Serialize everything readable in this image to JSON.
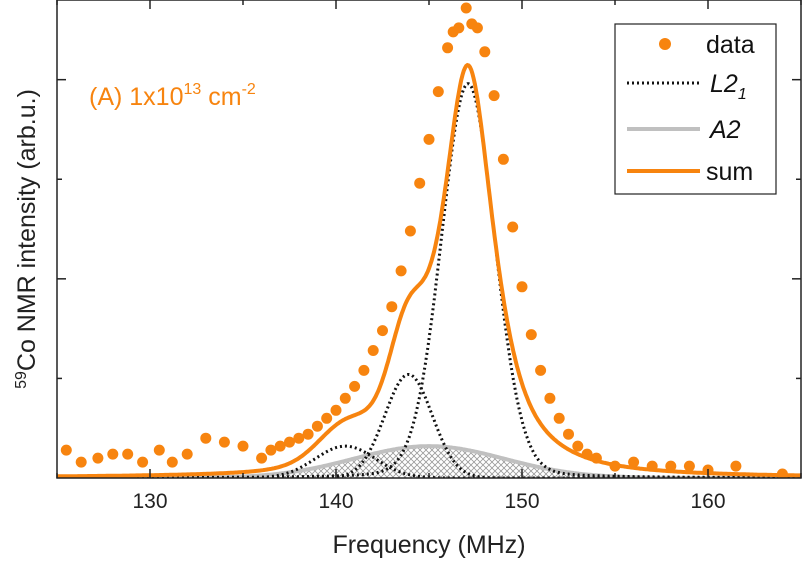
{
  "chart_data": {
    "type": "line",
    "xlabel": "Frequency (MHz)",
    "ylabel_sup": "59",
    "ylabel": "Co NMR intensity (arb.u.)",
    "xlim": [
      125,
      165
    ],
    "ylim": [
      0,
      1.2
    ],
    "xticks": [
      130,
      140,
      150,
      160
    ],
    "annotation": {
      "prefix": "(A) 1x10",
      "exp": "13",
      "unit": " cm",
      "unit_exp": "-2"
    },
    "colors": {
      "data": "#f7840f",
      "sum": "#f7840f",
      "l21": "#111111",
      "a2": "#c0c0c0"
    },
    "legend": {
      "position": "top-right",
      "data": "data",
      "l21_main": "L2",
      "l21_sub": "1",
      "a2": "A2",
      "sum": "sum"
    },
    "series": {
      "data": {
        "x": [
          125.5,
          126.3,
          127.2,
          128.0,
          128.8,
          129.6,
          130.5,
          131.2,
          132.0,
          133.0,
          134.0,
          135.0,
          136.0,
          136.5,
          137.0,
          137.5,
          138.0,
          138.5,
          139.0,
          139.5,
          140.0,
          140.5,
          141.0,
          141.5,
          142.0,
          142.5,
          143.0,
          143.5,
          144.0,
          144.5,
          145.0,
          145.5,
          146.0,
          146.3,
          146.6,
          147.0,
          147.3,
          147.6,
          148.0,
          148.5,
          149.0,
          149.5,
          150.0,
          150.5,
          151.0,
          151.5,
          152.0,
          152.5,
          153.0,
          153.5,
          154.0,
          155.0,
          156.0,
          157.0,
          158.0,
          159.0,
          160.0,
          161.5,
          164.0
        ],
        "y": [
          0.07,
          0.04,
          0.05,
          0.06,
          0.06,
          0.04,
          0.07,
          0.04,
          0.06,
          0.1,
          0.09,
          0.08,
          0.05,
          0.07,
          0.08,
          0.09,
          0.1,
          0.11,
          0.13,
          0.15,
          0.17,
          0.2,
          0.23,
          0.27,
          0.32,
          0.37,
          0.43,
          0.52,
          0.62,
          0.74,
          0.85,
          0.97,
          1.08,
          1.12,
          1.13,
          1.18,
          1.14,
          1.13,
          1.07,
          0.96,
          0.8,
          0.63,
          0.48,
          0.36,
          0.27,
          0.2,
          0.15,
          0.11,
          0.08,
          0.06,
          0.05,
          0.03,
          0.04,
          0.03,
          0.03,
          0.03,
          0.02,
          0.03,
          0.01
        ],
        "marker": "circle"
      },
      "sum": {
        "peaks": [
          [
            147.1,
            0.97,
            3.3,
            0.78
          ],
          [
            143.8,
            0.2,
            2.2,
            0.0
          ],
          [
            140.4,
            0.07,
            3.3,
            0.0
          ],
          [
            145.0,
            0.08,
            8.0,
            0.0
          ]
        ]
      },
      "l21": {
        "peaks": [
          [
            147.1,
            0.99,
            3.4,
            0.1
          ],
          [
            143.9,
            0.26,
            3.0,
            0.0
          ],
          [
            140.5,
            0.08,
            3.8,
            0.0
          ]
        ]
      },
      "a2": {
        "peaks": [
          [
            145.0,
            0.08,
            9.5,
            0.0
          ]
        ]
      }
    }
  }
}
